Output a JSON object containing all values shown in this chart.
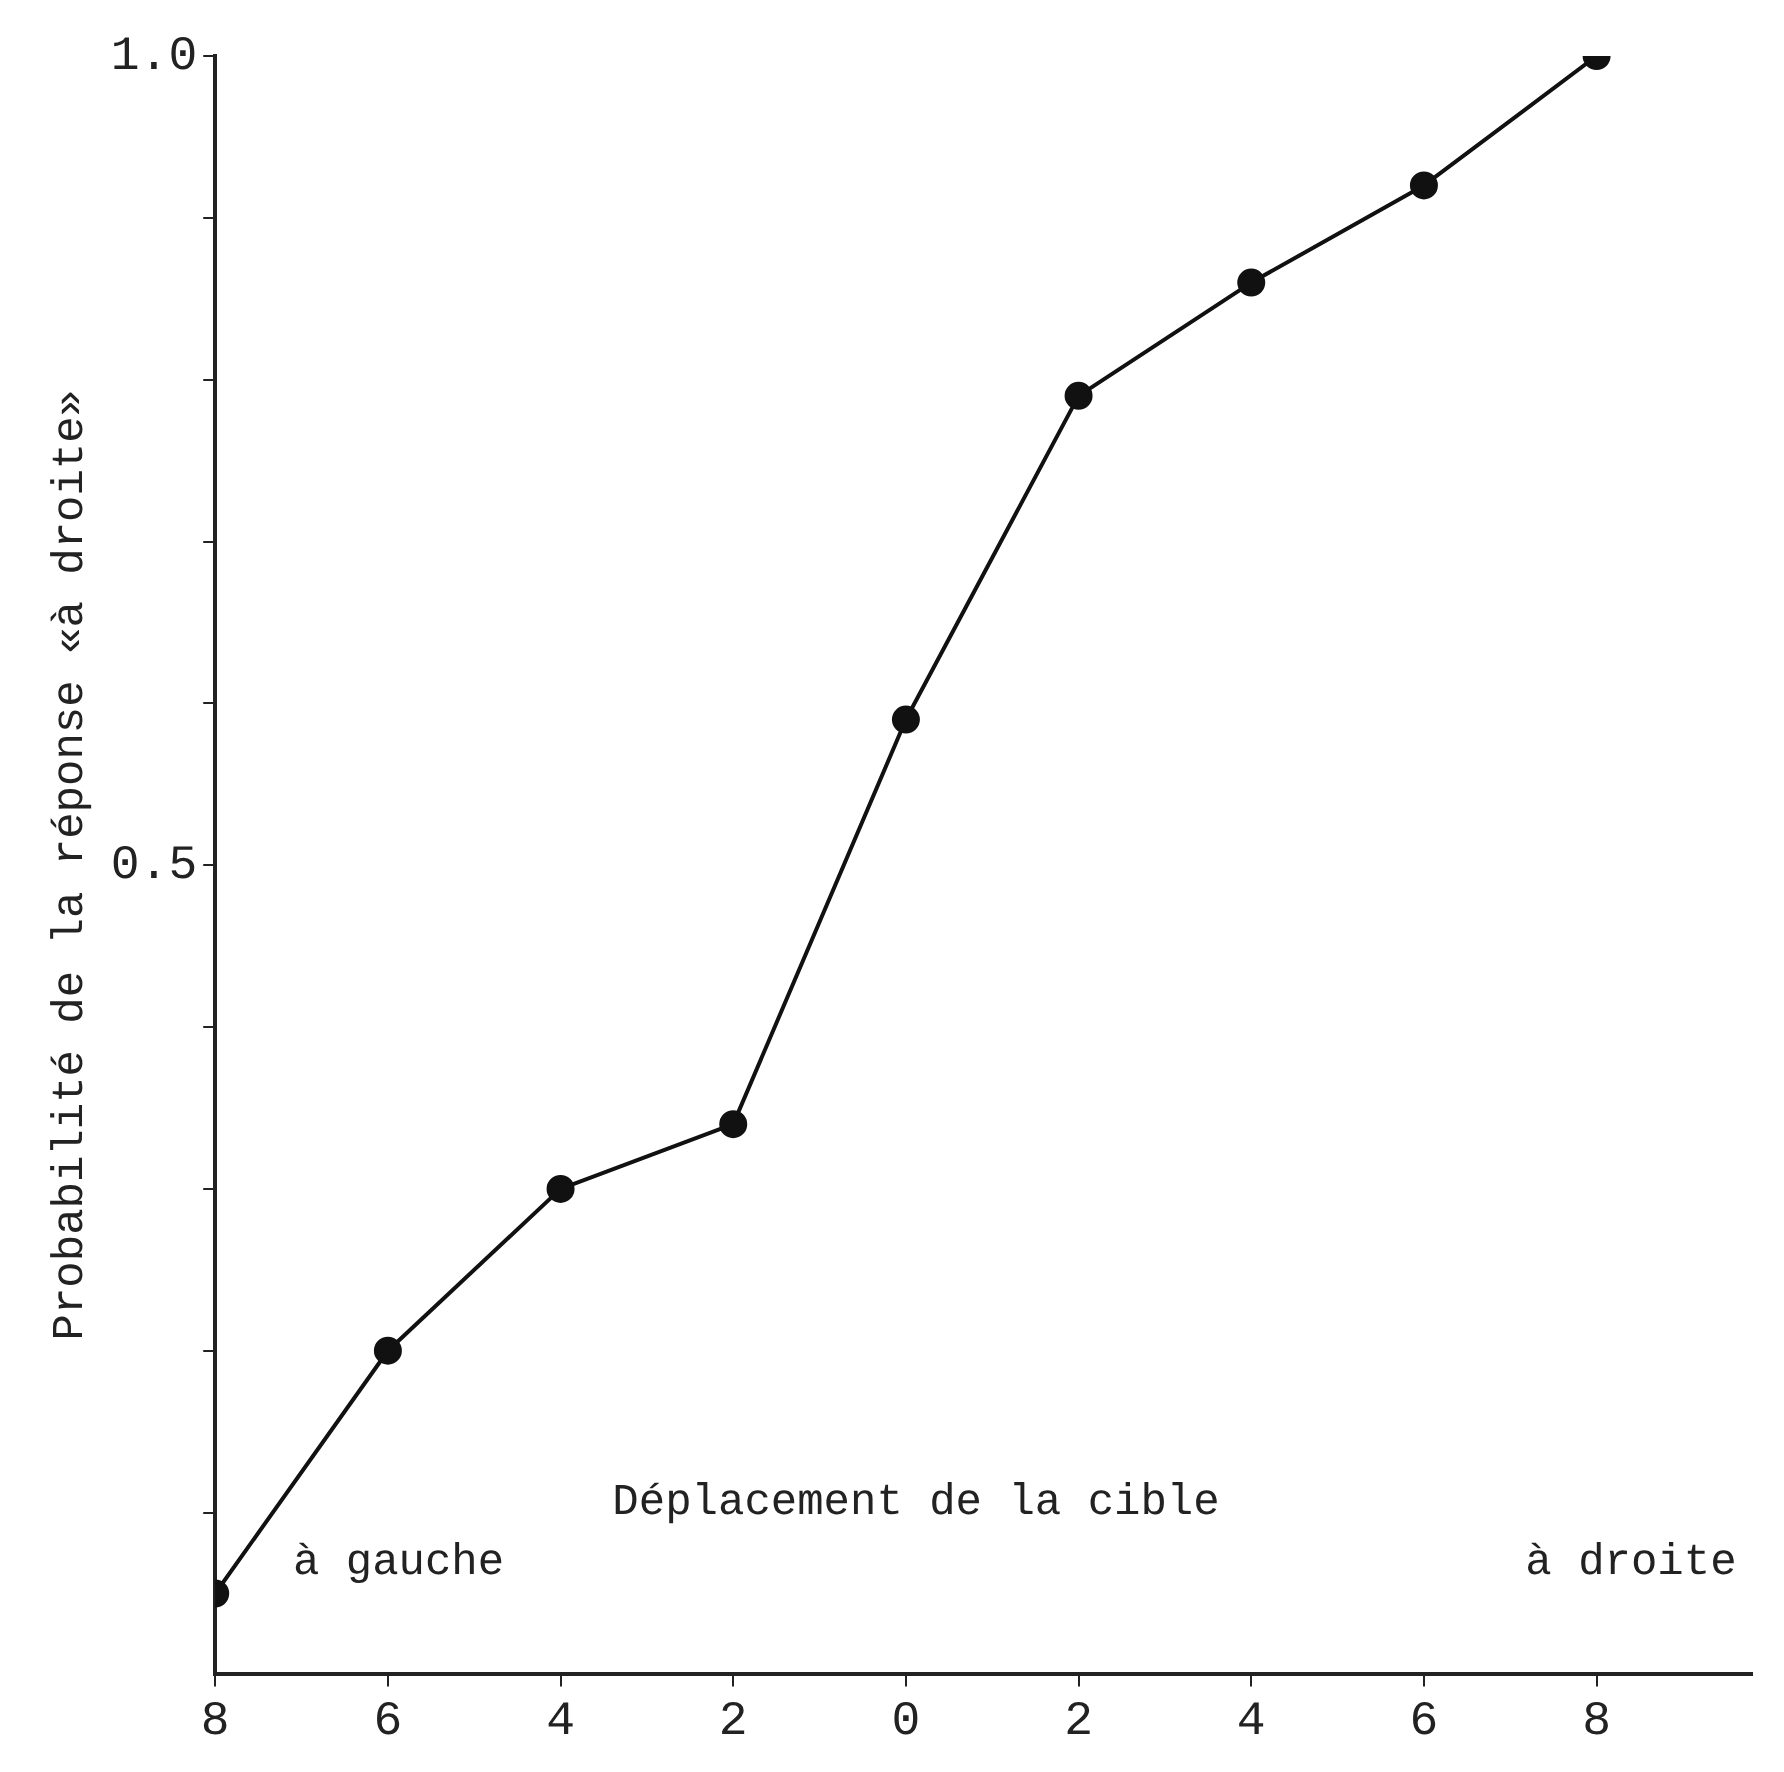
{
  "chart_data": {
    "type": "line",
    "categories": [
      "8",
      "6",
      "4",
      "2",
      "0",
      "2",
      "4",
      "6",
      "8"
    ],
    "series": [
      {
        "color": "#111111",
        "values": [
          0.05,
          0.2,
          0.3,
          0.34,
          0.59,
          0.79,
          0.86,
          0.92,
          1.0
        ]
      }
    ],
    "xlabel": "Déplacement de la cible",
    "ylabel": "Probabilité de la réponse «à droite»",
    "annotations": [
      "à gauche",
      "à droite"
    ],
    "ylim": [
      0,
      1
    ],
    "yticks": [
      {
        "value": 0.1,
        "label": null
      },
      {
        "value": 0.2,
        "label": null
      },
      {
        "value": 0.3,
        "label": null
      },
      {
        "value": 0.4,
        "label": null
      },
      {
        "value": 0.5,
        "label": "0.5"
      },
      {
        "value": 0.6,
        "label": null
      },
      {
        "value": 0.7,
        "label": null
      },
      {
        "value": 0.8,
        "label": null
      },
      {
        "value": 0.9,
        "label": null
      },
      {
        "value": 1.0,
        "label": "1.0"
      }
    ],
    "grid": false,
    "legend": false,
    "marker": "circle",
    "line_style": "solid"
  }
}
